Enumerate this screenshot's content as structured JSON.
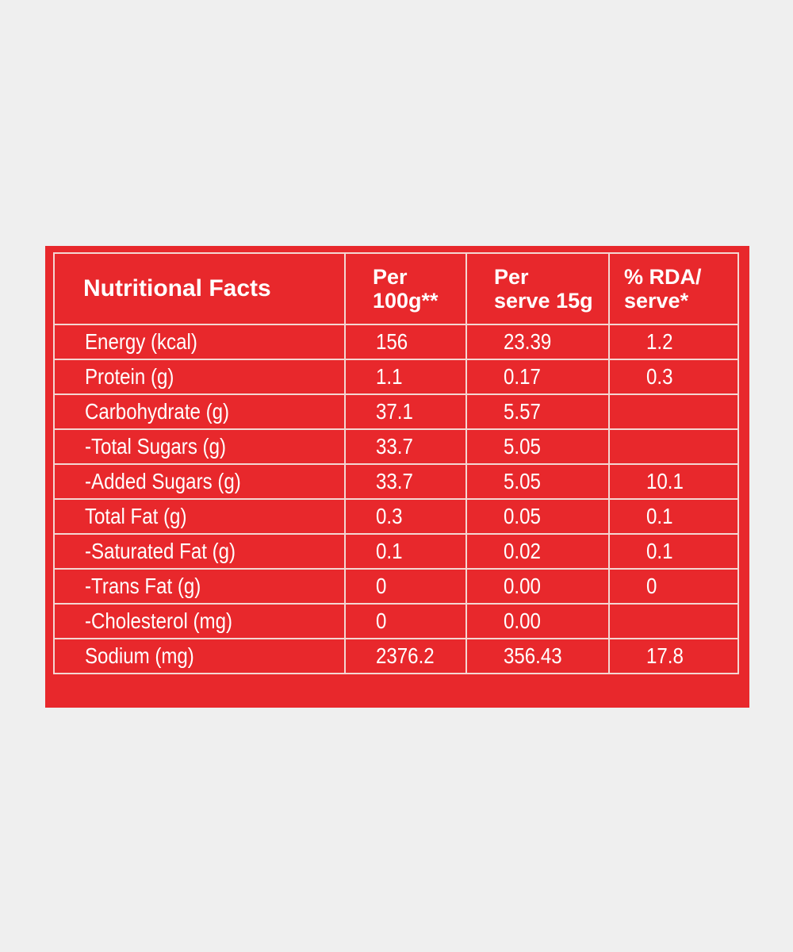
{
  "table": {
    "title": "Nutritional Facts",
    "columns": [
      {
        "line1": "Per",
        "line2": "100g**"
      },
      {
        "line1": "Per",
        "line2": "serve 15g"
      },
      {
        "line1": "% RDA/",
        "line2": "serve*"
      }
    ],
    "rows": [
      {
        "name": "Energy (kcal)",
        "per100": "156",
        "perServe": "23.39",
        "rda": "1.2"
      },
      {
        "name": "Protein (g)",
        "per100": "1.1",
        "perServe": "0.17",
        "rda": "0.3"
      },
      {
        "name": "Carbohydrate (g)",
        "per100": "37.1",
        "perServe": "5.57",
        "rda": ""
      },
      {
        "name": "-Total Sugars (g)",
        "per100": "33.7",
        "perServe": "5.05",
        "rda": ""
      },
      {
        "name": "-Added Sugars (g)",
        "per100": "33.7",
        "perServe": "5.05",
        "rda": "10.1"
      },
      {
        "name": "Total Fat (g)",
        "per100": "0.3",
        "perServe": "0.05",
        "rda": "0.1"
      },
      {
        "name": "-Saturated Fat (g)",
        "per100": "0.1",
        "perServe": "0.02",
        "rda": "0.1"
      },
      {
        "name": "-Trans Fat (g)",
        "per100": "0",
        "perServe": "0.00",
        "rda": "0"
      },
      {
        "name": "-Cholesterol (mg)",
        "per100": "0",
        "perServe": "0.00",
        "rda": ""
      },
      {
        "name": "Sodium (mg)",
        "per100": "2376.2",
        "perServe": "356.43",
        "rda": "17.8"
      }
    ]
  },
  "colors": {
    "page_background": "#efefef",
    "label_red": "#e8282c",
    "text": "#ffffff",
    "grid_lines": "#f4d6d2"
  }
}
